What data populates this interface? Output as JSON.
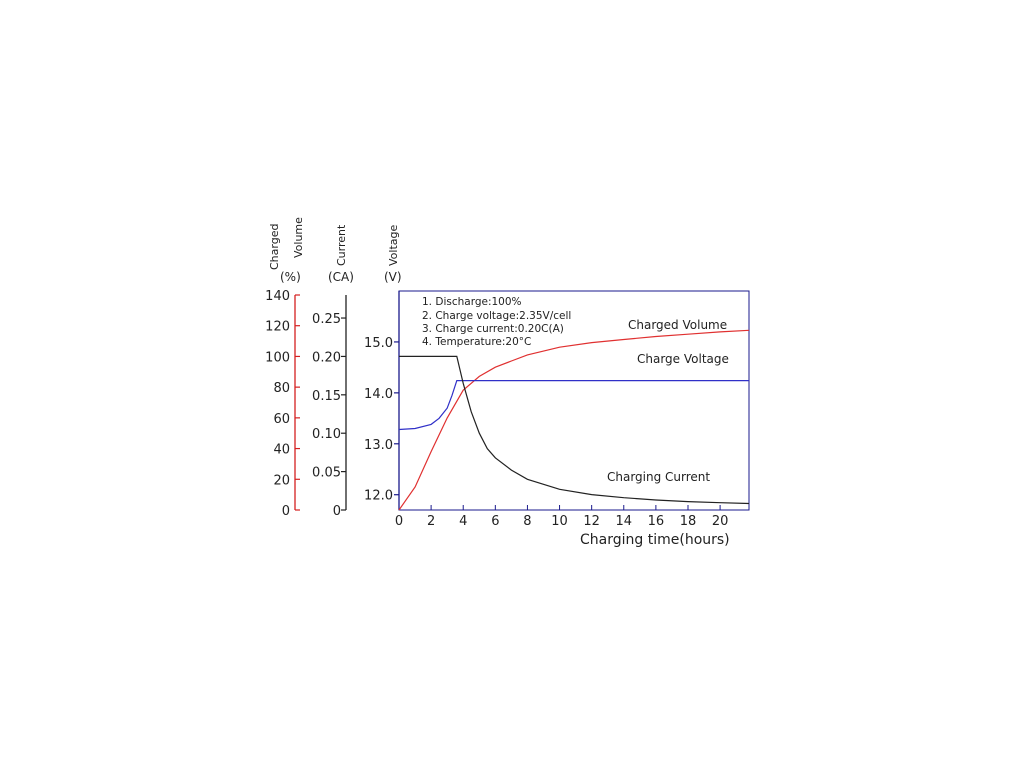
{
  "chart_data": {
    "type": "line",
    "xlabel": "Charging time(hours)",
    "xlim": [
      0,
      21.8
    ],
    "xticks": [
      0,
      2,
      4,
      6,
      8,
      10,
      12,
      14,
      16,
      18,
      20
    ],
    "axes": {
      "charged_volume": {
        "label_line1": "Charged",
        "label_line2": "Volume",
        "unit": "(%)",
        "range": [
          0,
          140
        ],
        "ticks": [
          "0",
          "20",
          "40",
          "60",
          "80",
          "100",
          "120",
          "140"
        ],
        "tick_values": [
          0,
          20,
          40,
          60,
          80,
          100,
          120,
          140
        ],
        "color": "#d42020"
      },
      "current": {
        "label": "Current",
        "unit": "(CA)",
        "range": [
          0,
          0.28
        ],
        "ticks": [
          "0",
          "0.05",
          "0.10",
          "0.15",
          "0.20",
          "0.25"
        ],
        "tick_values": [
          0,
          0.05,
          0.1,
          0.15,
          0.2,
          0.25
        ],
        "color": "#222222"
      },
      "voltage": {
        "label": "Voltage",
        "unit": "(V)",
        "range": [
          11.7,
          16.0
        ],
        "ticks": [
          "12.0",
          "13.0",
          "14.0",
          "15.0"
        ],
        "tick_values": [
          12.0,
          13.0,
          14.0,
          15.0
        ],
        "color": "#222222"
      }
    },
    "conditions": [
      "1. Discharge:100%",
      "2. Charge voltage:2.35V/cell",
      "3. Charge current:0.20C(A)",
      "4. Temperature:20°C"
    ],
    "series": [
      {
        "name": "Charged Volume",
        "axis": "charged_volume",
        "color": "#e03030",
        "x": [
          0,
          1,
          2,
          3,
          4,
          5,
          6,
          7,
          8,
          10,
          12,
          14,
          16,
          18,
          20,
          21.8
        ],
        "y": [
          0,
          15,
          38,
          60,
          78,
          87,
          93,
          97,
          101,
          106,
          109,
          111,
          113,
          114.5,
          116,
          117
        ]
      },
      {
        "name": "Charge Voltage",
        "axis": "voltage",
        "color": "#3030c8",
        "x": [
          0,
          1,
          2,
          2.5,
          3,
          3.3,
          3.6,
          4,
          6,
          10,
          14,
          18,
          21.8
        ],
        "y": [
          13.28,
          13.3,
          13.38,
          13.5,
          13.7,
          13.95,
          14.24,
          14.24,
          14.24,
          14.24,
          14.24,
          14.24,
          14.24
        ]
      },
      {
        "name": "Charging Current",
        "axis": "current",
        "color": "#222222",
        "x": [
          0,
          3.6,
          4,
          4.5,
          5,
          5.5,
          6,
          7,
          8,
          10,
          12,
          14,
          16,
          18,
          20,
          21.8
        ],
        "y": [
          0.2,
          0.2,
          0.165,
          0.128,
          0.1,
          0.08,
          0.068,
          0.052,
          0.04,
          0.027,
          0.02,
          0.016,
          0.013,
          0.011,
          0.0095,
          0.0085
        ]
      }
    ],
    "annotations": [
      "Charged Volume",
      "Charge Voltage",
      "Charging Current"
    ]
  }
}
